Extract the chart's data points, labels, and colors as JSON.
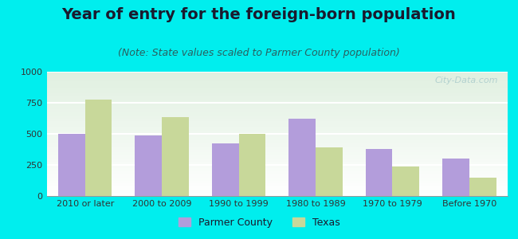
{
  "title": "Year of entry for the foreign-born population",
  "subtitle": "(Note: State values scaled to Parmer County population)",
  "categories": [
    "2010 or later",
    "2000 to 2009",
    "1990 to 1999",
    "1980 to 1989",
    "1970 to 1979",
    "Before 1970"
  ],
  "parmer_values": [
    500,
    490,
    420,
    620,
    380,
    300
  ],
  "texas_values": [
    775,
    635,
    500,
    390,
    240,
    150
  ],
  "parmer_color": "#b39ddb",
  "texas_color": "#c8d89a",
  "background_color": "#00eeee",
  "ylim": [
    0,
    1000
  ],
  "yticks": [
    0,
    250,
    500,
    750,
    1000
  ],
  "bar_width": 0.35,
  "legend_labels": [
    "Parmer County",
    "Texas"
  ],
  "title_fontsize": 14,
  "subtitle_fontsize": 9,
  "tick_fontsize": 8,
  "title_color": "#1a1a2e",
  "subtitle_color": "#2a6060",
  "watermark_color": "#aacccc"
}
